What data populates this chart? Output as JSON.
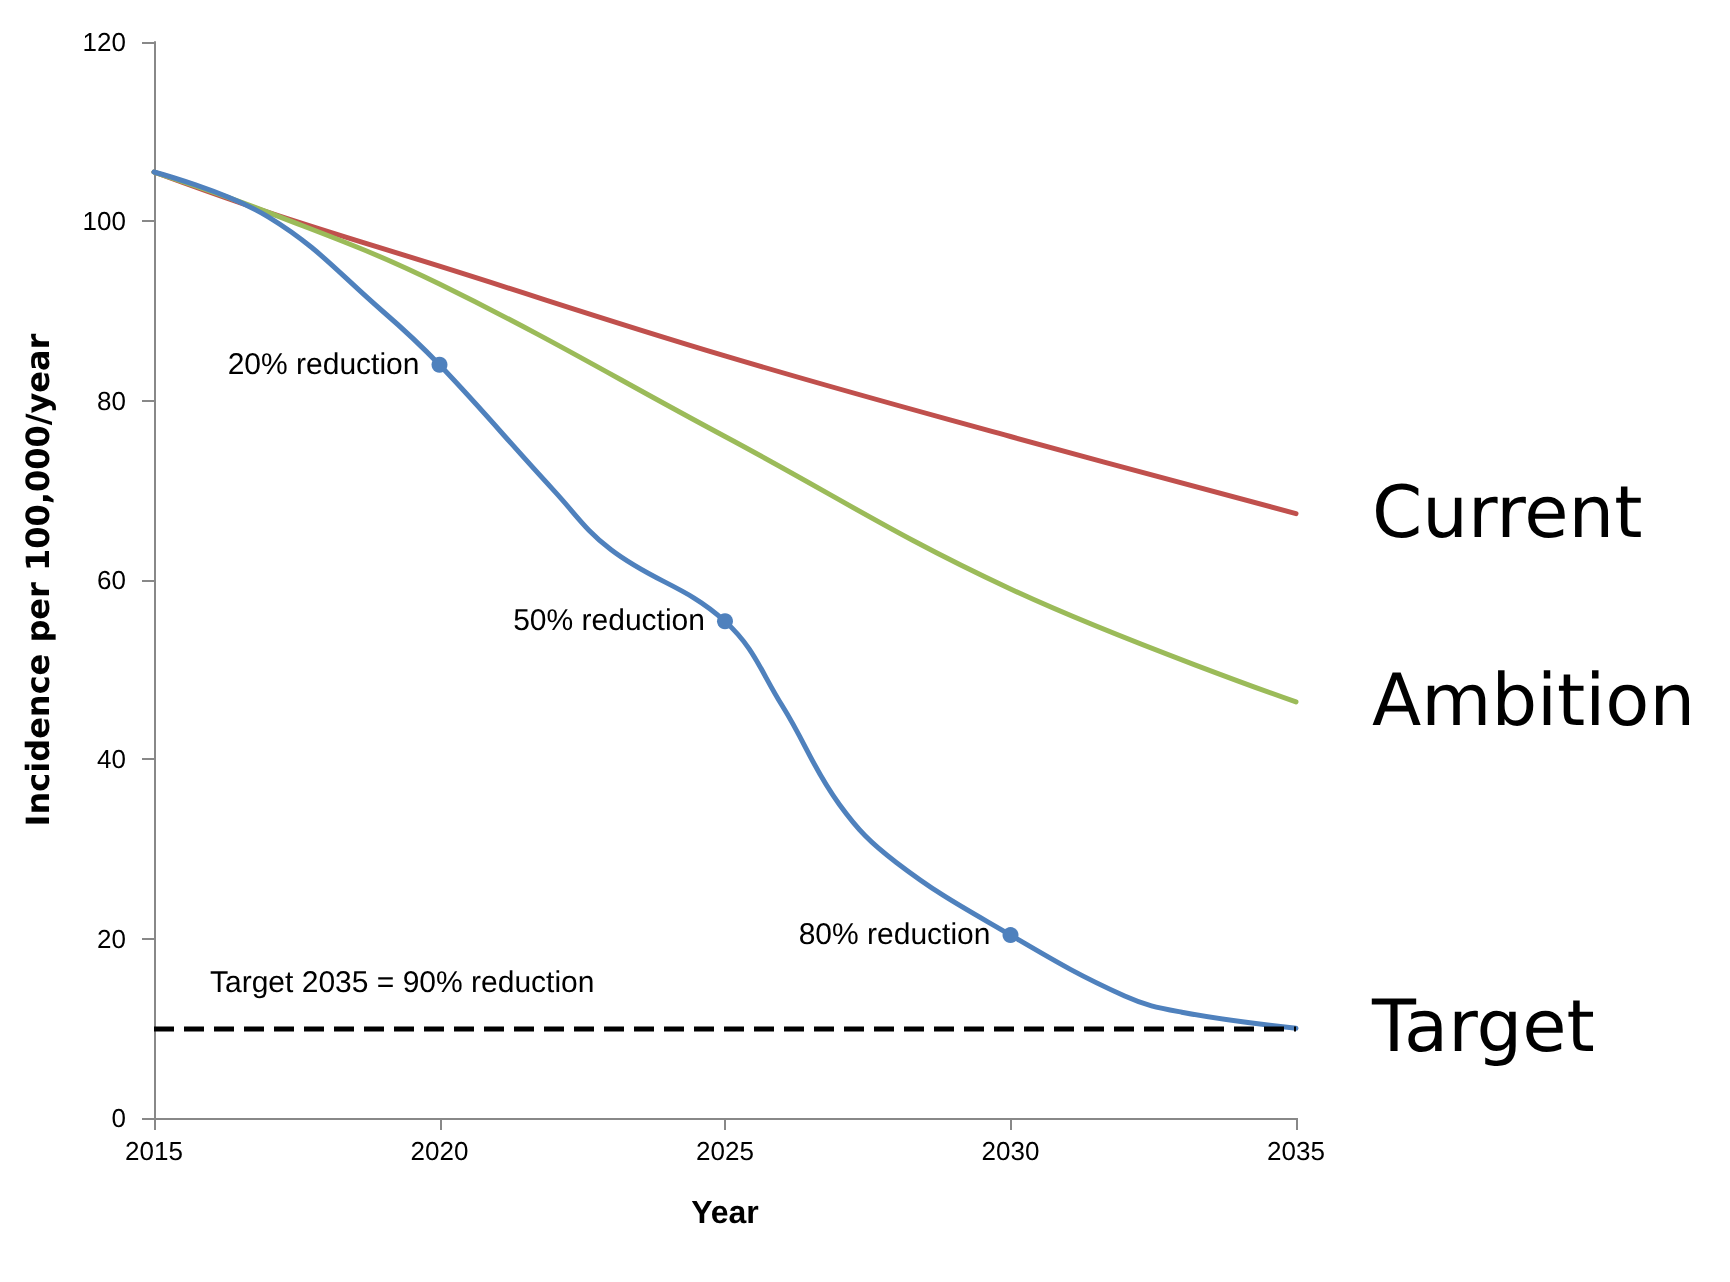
{
  "chart_data": {
    "type": "line",
    "xlabel": "Year",
    "ylabel": "Incidence per 100,000/year",
    "x": [
      2015,
      2017,
      2019,
      2020,
      2022,
      2023,
      2025,
      2026,
      2027,
      2028,
      2030,
      2032,
      2033,
      2035
    ],
    "xlim": [
      2015,
      2035
    ],
    "xticks": [
      2015,
      2020,
      2025,
      2030,
      2035
    ],
    "ylim": [
      0,
      120
    ],
    "yticks": [
      0,
      20,
      40,
      60,
      80,
      100,
      120
    ],
    "series": [
      {
        "name": "Current",
        "color": "#c0504d",
        "x": [
          2015,
          2017,
          2020,
          2025,
          2030,
          2035
        ],
        "values": [
          105.5,
          101,
          95,
          85,
          76,
          67.4
        ]
      },
      {
        "name": "Ambition",
        "color": "#9bbb59",
        "x": [
          2015,
          2017,
          2020,
          2025,
          2030,
          2035
        ],
        "values": [
          105.5,
          101,
          93,
          76,
          59,
          46.4
        ]
      },
      {
        "name": "Target",
        "color": "#4f81bd",
        "values": [
          105.5,
          100.5,
          90,
          84,
          70,
          63.4,
          55.4,
          46,
          35,
          28.5,
          20.4,
          13.6,
          11.8,
          10
        ]
      }
    ],
    "annotations": [
      {
        "text": "20% reduction",
        "x": 2020,
        "y": 84
      },
      {
        "text": "50% reduction",
        "x": 2025,
        "y": 55.4
      },
      {
        "text": "80% reduction",
        "x": 2030,
        "y": 20.4
      },
      "Target 2035 = 90% reduction"
    ],
    "ref_lines": [
      {
        "axis": "y",
        "value": 10,
        "color": "#000000",
        "line_style": "dashed"
      }
    ],
    "grid": false,
    "legend": false,
    "marker": "none",
    "line_style": "solid"
  }
}
